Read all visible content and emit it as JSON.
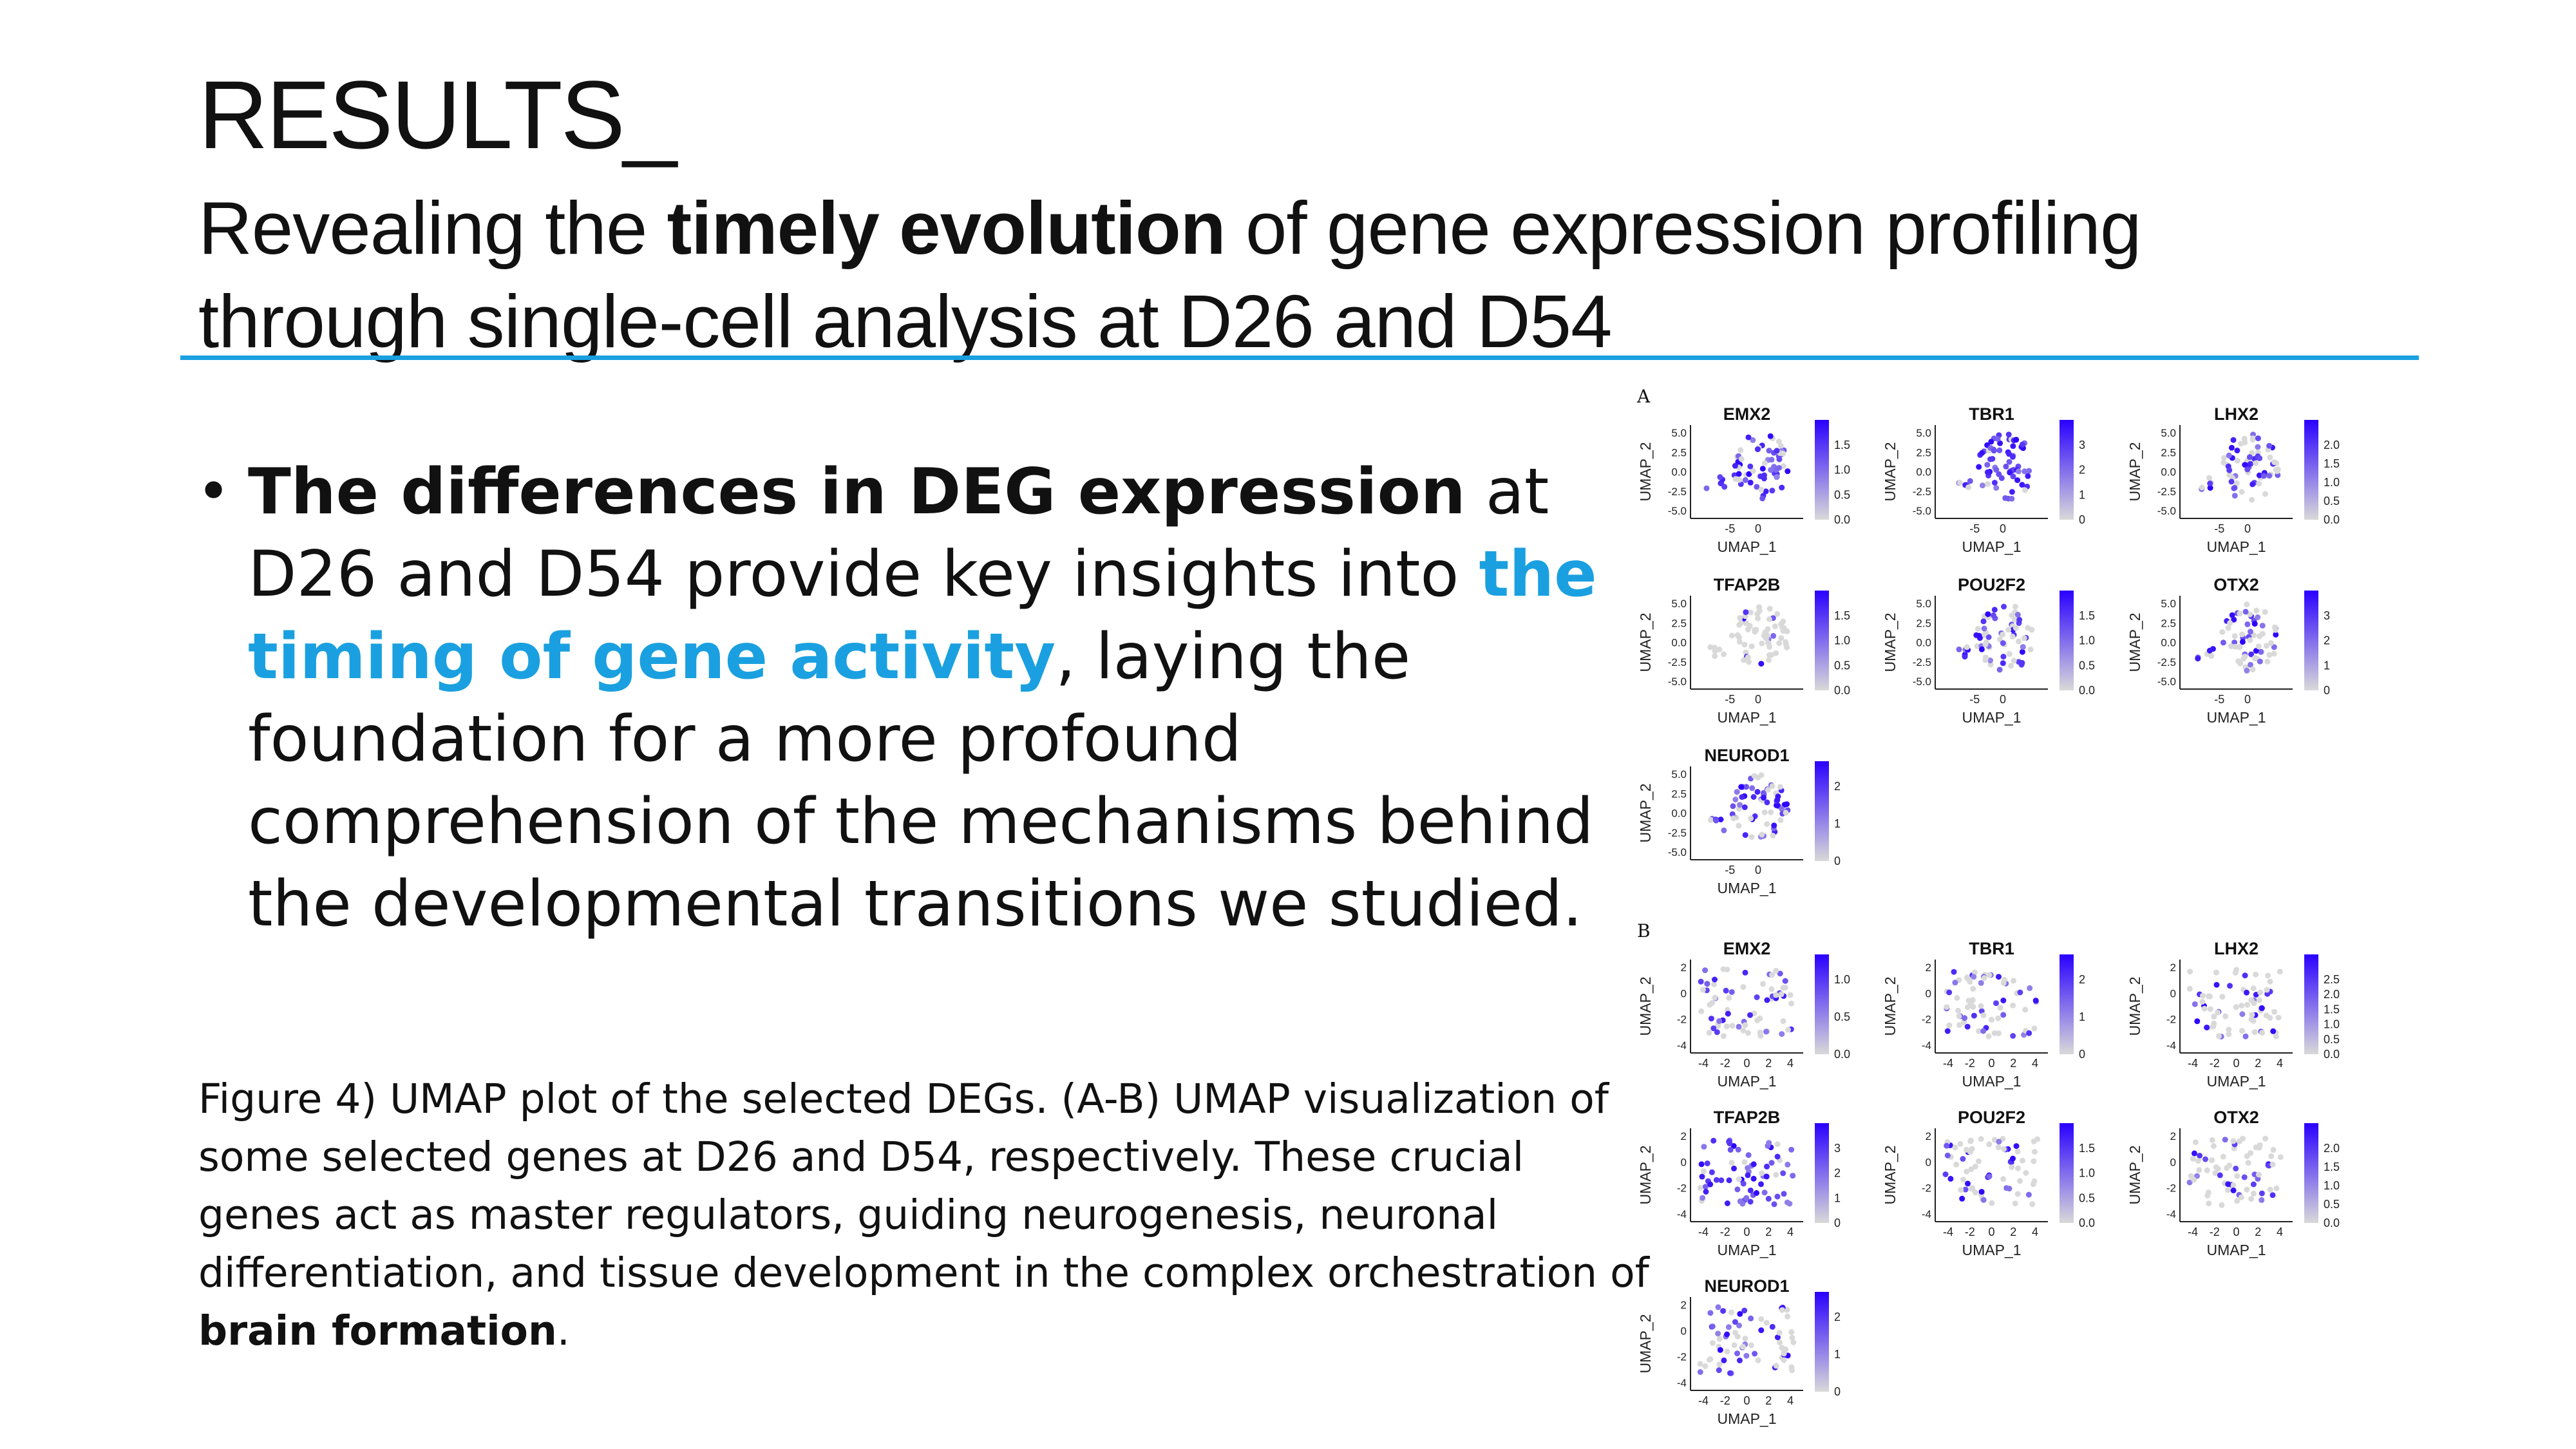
{
  "slide": {
    "title": "RESULTS_",
    "subtitle": {
      "part1": "Revealing the ",
      "bold": "timely evolution",
      "part2": " of gene expression profiling through single-cell analysis at D26 and D54"
    }
  },
  "bullet": {
    "bold": "The differences in DEG expression",
    "part1": " at D26 and D54 provide key insights into ",
    "highlight": "the timing of gene activity",
    "part2": ", laying the foundation for a more profound comprehension of the mechanisms behind the developmental transitions we studied."
  },
  "caption": {
    "text": "Figure 4) UMAP plot of the selected DEGs. (A-B) UMAP visualization of some selected genes at D26 and D54, respectively. These crucial genes act as master regulators, guiding neurogenesis, neuronal differentiation, and tissue development in the complex orchestration of ",
    "bold": "brain formation",
    "end": "."
  },
  "colors": {
    "accent": "#1aa0e0",
    "expression_high": "#2a00ff",
    "expression_low": "#d9d9d9"
  },
  "figure": {
    "xlabel": "UMAP_1",
    "ylabel": "UMAP_2",
    "panels": [
      {
        "label": "A",
        "xticks": [
          "-5",
          "0"
        ],
        "yticks": [
          "5.0",
          "2.5",
          "0.0",
          "-2.5",
          "-5.0"
        ],
        "genes": [
          {
            "name": "EMX2",
            "scale": [
              "1.5",
              "1.0",
              "0.5",
              "0.0"
            ],
            "level": 0.7
          },
          {
            "name": "TBR1",
            "scale": [
              "3",
              "2",
              "1",
              "0"
            ],
            "level": 0.9
          },
          {
            "name": "LHX2",
            "scale": [
              "2.0",
              "1.5",
              "1.0",
              "0.5",
              "0.0"
            ],
            "level": 0.6
          },
          {
            "name": "TFAP2B",
            "scale": [
              "1.5",
              "1.0",
              "0.5",
              "0.0"
            ],
            "level": 0.1
          },
          {
            "name": "POU2F2",
            "scale": [
              "1.5",
              "1.0",
              "0.5",
              "0.0"
            ],
            "level": 0.5
          },
          {
            "name": "OTX2",
            "scale": [
              "3",
              "2",
              "1",
              "0"
            ],
            "level": 0.5
          },
          {
            "name": "NEUROD1",
            "scale": [
              "2",
              "1",
              "0"
            ],
            "level": 0.7
          }
        ]
      },
      {
        "label": "B",
        "xticks": [
          "-4",
          "-2",
          "0",
          "2",
          "4"
        ],
        "yticks": [
          "2",
          "0",
          "-2",
          "-4"
        ],
        "genes": [
          {
            "name": "EMX2",
            "scale": [
              "1.0",
              "0.5",
              "0.0"
            ],
            "level": 0.5
          },
          {
            "name": "TBR1",
            "scale": [
              "2",
              "1",
              "0"
            ],
            "level": 0.5
          },
          {
            "name": "LHX2",
            "scale": [
              "2.5",
              "2.0",
              "1.5",
              "1.0",
              "0.5",
              "0.0"
            ],
            "level": 0.3
          },
          {
            "name": "TFAP2B",
            "scale": [
              "3",
              "2",
              "1",
              "0"
            ],
            "level": 0.8
          },
          {
            "name": "POU2F2",
            "scale": [
              "1.5",
              "1.0",
              "0.5",
              "0.0"
            ],
            "level": 0.4
          },
          {
            "name": "OTX2",
            "scale": [
              "2.0",
              "1.5",
              "1.0",
              "0.5",
              "0.0"
            ],
            "level": 0.3
          },
          {
            "name": "NEUROD1",
            "scale": [
              "2",
              "1",
              "0"
            ],
            "level": 0.5
          }
        ]
      }
    ]
  }
}
